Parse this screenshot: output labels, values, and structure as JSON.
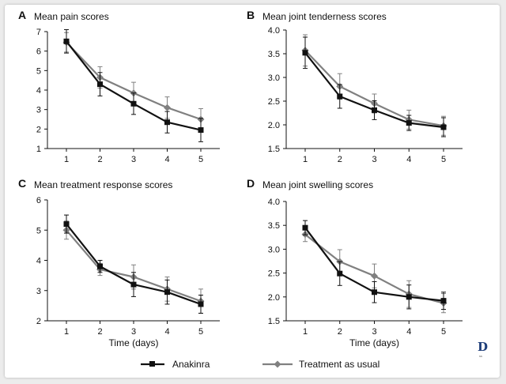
{
  "colors": {
    "anakinra": "#111111",
    "treatment_as_usual": "#808080",
    "axis": "#111111",
    "logo": "#1f3f7a"
  },
  "legend": {
    "anakinra": "Anakinra",
    "treatment_as_usual": "Treatment as usual",
    "placement": "bottom-center"
  },
  "logo": {
    "letter": "D",
    "sub": "ss"
  },
  "chart_data": [
    {
      "type": "line",
      "letter": "A",
      "title": "Mean pain scores",
      "xlabel": "",
      "ylabel": "",
      "x": [
        1,
        2,
        3,
        4,
        5
      ],
      "ylim": [
        1,
        7
      ],
      "yticks": [
        "1",
        "2",
        "3",
        "4",
        "5",
        "6",
        "7"
      ],
      "series": [
        {
          "name": "Anakinra",
          "values": [
            6.5,
            4.3,
            3.3,
            2.35,
            1.95
          ],
          "errors": [
            0.6,
            0.6,
            0.55,
            0.55,
            0.6
          ]
        },
        {
          "name": "Treatment as usual",
          "values": [
            6.45,
            4.65,
            3.85,
            3.1,
            2.5
          ],
          "errors": [
            0.5,
            0.55,
            0.55,
            0.55,
            0.55
          ]
        }
      ]
    },
    {
      "type": "line",
      "letter": "B",
      "title": "Mean joint tenderness scores",
      "xlabel": "",
      "ylabel": "",
      "x": [
        1,
        2,
        3,
        4,
        5
      ],
      "ylim": [
        1.5,
        4.0
      ],
      "yticks": [
        "1.5",
        "2.0",
        "2.5",
        "3.0",
        "3.5",
        "4.0"
      ],
      "series": [
        {
          "name": "Anakinra",
          "values": [
            3.52,
            2.6,
            2.31,
            2.04,
            1.95
          ],
          "errors": [
            0.33,
            0.25,
            0.2,
            0.16,
            0.2
          ]
        },
        {
          "name": "Treatment as usual",
          "values": [
            3.57,
            2.81,
            2.45,
            2.11,
            1.98
          ],
          "errors": [
            0.33,
            0.27,
            0.2,
            0.2,
            0.2
          ]
        }
      ]
    },
    {
      "type": "line",
      "letter": "C",
      "title": "Mean treatment response scores",
      "xlabel": "Time (days)",
      "ylabel": "",
      "x": [
        1,
        2,
        3,
        4,
        5
      ],
      "ylim": [
        2,
        6
      ],
      "yticks": [
        "2",
        "3",
        "4",
        "5",
        "6"
      ],
      "series": [
        {
          "name": "Anakinra",
          "values": [
            5.2,
            3.8,
            3.2,
            2.95,
            2.55
          ],
          "errors": [
            0.3,
            0.2,
            0.4,
            0.4,
            0.3
          ]
        },
        {
          "name": "Treatment as usual",
          "values": [
            5.0,
            3.7,
            3.45,
            3.05,
            2.65
          ],
          "errors": [
            0.3,
            0.2,
            0.4,
            0.4,
            0.4
          ]
        }
      ]
    },
    {
      "type": "line",
      "letter": "D",
      "title": "Mean joint swelling scores",
      "xlabel": "Time (days)",
      "ylabel": "",
      "x": [
        1,
        2,
        3,
        4,
        5
      ],
      "ylim": [
        1.5,
        4.0
      ],
      "yticks": [
        "1.5",
        "2.0",
        "2.5",
        "3.0",
        "3.5",
        "4.0"
      ],
      "series": [
        {
          "name": "Anakinra",
          "values": [
            3.45,
            2.49,
            2.1,
            2.0,
            1.92
          ],
          "errors": [
            0.15,
            0.25,
            0.22,
            0.25,
            0.18
          ]
        },
        {
          "name": "Treatment as usual",
          "values": [
            3.31,
            2.74,
            2.44,
            2.06,
            1.87
          ],
          "errors": [
            0.15,
            0.25,
            0.25,
            0.28,
            0.2
          ]
        }
      ]
    }
  ]
}
